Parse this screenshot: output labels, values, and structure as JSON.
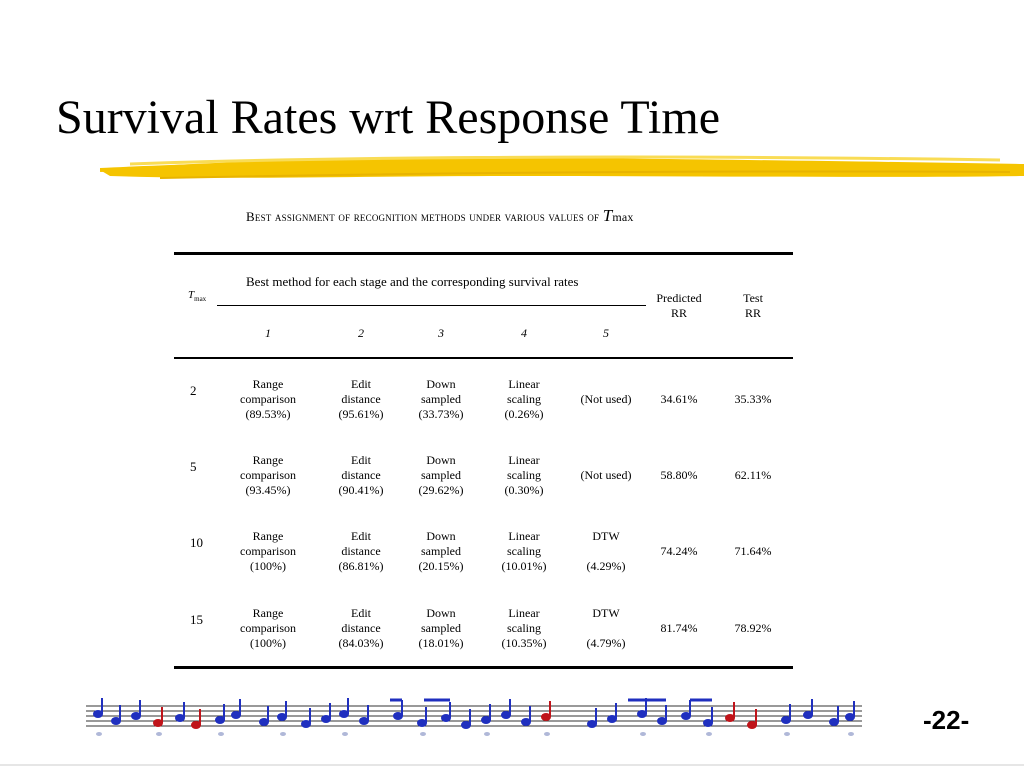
{
  "slide": {
    "title": "Survival Rates wrt Response Time",
    "page_number": "-22-"
  },
  "table": {
    "caption": "Best assignment of recognition methods under various values of",
    "caption_var": "T",
    "caption_sub": "max",
    "header_group": "Best method for each stage and the corresponding survival rates",
    "tmax_label": "T",
    "tmax_sub": "max",
    "stages": [
      "1",
      "2",
      "3",
      "4",
      "5"
    ],
    "predicted_label": [
      "Predicted",
      "RR"
    ],
    "test_label": [
      "Test",
      "RR"
    ],
    "rows": [
      {
        "tmax": "2",
        "stages": [
          [
            "Range",
            "comparison",
            "(89.53%)"
          ],
          [
            "Edit",
            "distance",
            "(95.61%)"
          ],
          [
            "Down",
            "sampled",
            "(33.73%)"
          ],
          [
            "Linear",
            "scaling",
            "(0.26%)"
          ],
          [
            "(Not used)"
          ]
        ],
        "predicted": "34.61%",
        "test": "35.33%"
      },
      {
        "tmax": "5",
        "stages": [
          [
            "Range",
            "comparison",
            "(93.45%)"
          ],
          [
            "Edit",
            "distance",
            "(90.41%)"
          ],
          [
            "Down",
            "sampled",
            "(29.62%)"
          ],
          [
            "Linear",
            "scaling",
            "(0.30%)"
          ],
          [
            "(Not used)"
          ]
        ],
        "predicted": "58.80%",
        "test": "62.11%"
      },
      {
        "tmax": "10",
        "stages": [
          [
            "Range",
            "comparison",
            "(100%)"
          ],
          [
            "Edit",
            "distance",
            "(86.81%)"
          ],
          [
            "Down",
            "sampled",
            "(20.15%)"
          ],
          [
            "Linear",
            "scaling",
            "(10.01%)"
          ],
          [
            "DTW",
            "",
            "(4.29%)"
          ]
        ],
        "predicted": "74.24%",
        "test": "71.64%"
      },
      {
        "tmax": "15",
        "stages": [
          [
            "Range",
            "comparison",
            "(100%)"
          ],
          [
            "Edit",
            "distance",
            "(84.03%)"
          ],
          [
            "Down",
            "sampled",
            "(18.01%)"
          ],
          [
            "Linear",
            "scaling",
            "(10.35%)"
          ],
          [
            "DTW",
            "",
            "(4.79%)"
          ]
        ],
        "predicted": "81.74%",
        "test": "78.92%"
      }
    ]
  },
  "colors": {
    "highlighter": "#f5c400",
    "note_blue": "#1f2fbf",
    "note_red": "#c0141a"
  }
}
